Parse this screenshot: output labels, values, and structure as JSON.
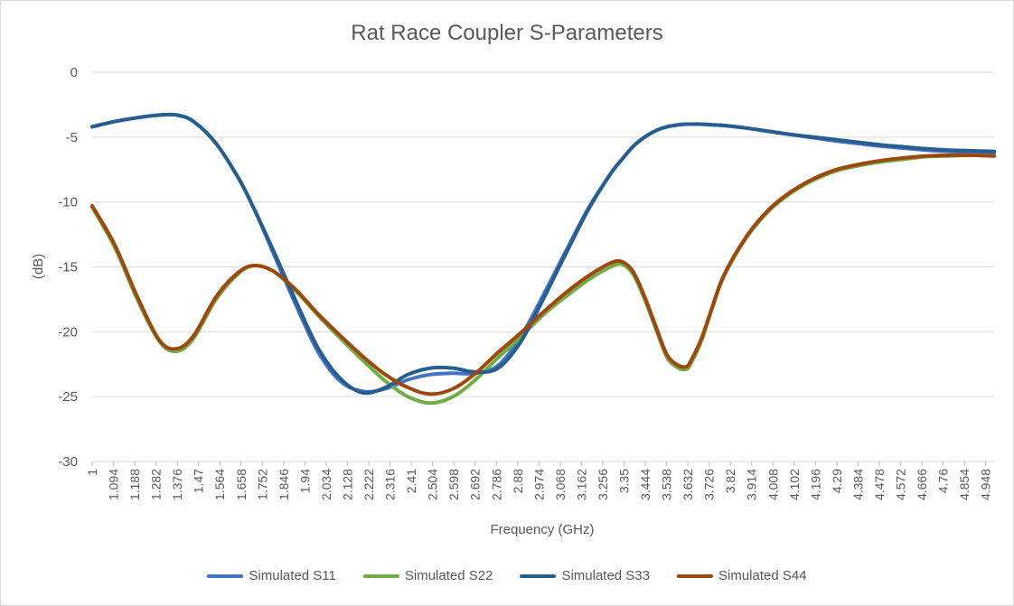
{
  "chart_data": {
    "type": "line",
    "title": "Rat Race Coupler S-Parameters",
    "xlabel": "Frequency (GHz)",
    "ylabel": "(dB)",
    "ylim": [
      -30,
      0
    ],
    "y_ticks": [
      "0",
      "-5",
      "-10",
      "-15",
      "-20",
      "-25",
      "-30"
    ],
    "x_tick_labels": [
      "1",
      "1.094",
      "1.188",
      "1.282",
      "1.376",
      "1.47",
      "1.564",
      "1.658",
      "1.752",
      "1.846",
      "1.94",
      "2.034",
      "2.128",
      "2.222",
      "2.316",
      "2.41",
      "2.504",
      "2.598",
      "2.692",
      "2.786",
      "2.88",
      "2.974",
      "3.068",
      "3.162",
      "3.256",
      "3.35",
      "3.444",
      "3.538",
      "3.632",
      "3.726",
      "3.82",
      "3.914",
      "4.008",
      "4.102",
      "4.196",
      "4.29",
      "4.384",
      "4.478",
      "4.572",
      "4.666",
      "4.76",
      "4.854",
      "4.948"
    ],
    "xlim": [
      1.0,
      5.0
    ],
    "grid": true,
    "legend_position": "bottom",
    "x": [
      1.0,
      1.1,
      1.2,
      1.3,
      1.376,
      1.45,
      1.55,
      1.65,
      1.72,
      1.8,
      1.9,
      2.0,
      2.1,
      2.2,
      2.3,
      2.4,
      2.5,
      2.6,
      2.7,
      2.8,
      2.9,
      3.0,
      3.1,
      3.2,
      3.3,
      3.35,
      3.4,
      3.45,
      3.5,
      3.55,
      3.6,
      3.632,
      3.65,
      3.7,
      3.75,
      3.8,
      3.9,
      4.0,
      4.1,
      4.2,
      4.3,
      4.4,
      4.5,
      4.6,
      4.7,
      4.8,
      4.9,
      5.0
    ],
    "series": [
      {
        "name": "Simulated S11",
        "color": "#4472c4",
        "values": [
          -4.2,
          -3.8,
          -3.5,
          -3.3,
          -3.3,
          -3.8,
          -5.5,
          -8.2,
          -10.6,
          -13.8,
          -17.8,
          -21.5,
          -23.8,
          -24.6,
          -24.4,
          -23.7,
          -23.3,
          -23.2,
          -23.2,
          -22.6,
          -20.4,
          -17.2,
          -13.8,
          -10.5,
          -7.8,
          -6.7,
          -5.7,
          -5.0,
          -4.5,
          -4.2,
          -4.05,
          -4.0,
          -4.0,
          -4.0,
          -4.05,
          -4.1,
          -4.3,
          -4.55,
          -4.8,
          -5.05,
          -5.3,
          -5.5,
          -5.7,
          -5.85,
          -6.0,
          -6.1,
          -6.15,
          -6.2
        ]
      },
      {
        "name": "Simulated S22",
        "color": "#70ad47",
        "values": [
          -10.4,
          -13.5,
          -17.5,
          -20.8,
          -21.5,
          -20.5,
          -17.5,
          -15.5,
          -14.9,
          -15.3,
          -16.8,
          -18.7,
          -20.5,
          -22.2,
          -23.8,
          -25.0,
          -25.5,
          -25.0,
          -23.7,
          -22.0,
          -20.4,
          -18.7,
          -17.3,
          -16.0,
          -15.0,
          -14.8,
          -15.6,
          -17.5,
          -19.8,
          -22.0,
          -22.8,
          -22.9,
          -22.6,
          -20.8,
          -18.2,
          -15.8,
          -12.8,
          -10.7,
          -9.3,
          -8.3,
          -7.6,
          -7.2,
          -6.9,
          -6.7,
          -6.5,
          -6.45,
          -6.4,
          -6.45
        ]
      },
      {
        "name": "Simulated S33",
        "color": "#255e91",
        "values": [
          -4.2,
          -3.8,
          -3.5,
          -3.3,
          -3.3,
          -3.8,
          -5.5,
          -8.2,
          -10.6,
          -13.6,
          -17.5,
          -21.2,
          -23.6,
          -24.7,
          -24.3,
          -23.3,
          -22.8,
          -22.8,
          -23.1,
          -22.8,
          -20.8,
          -17.5,
          -14.0,
          -10.6,
          -7.8,
          -6.7,
          -5.7,
          -5.0,
          -4.5,
          -4.2,
          -4.05,
          -4.0,
          -4.0,
          -4.0,
          -4.05,
          -4.1,
          -4.3,
          -4.55,
          -4.8,
          -5.0,
          -5.2,
          -5.4,
          -5.6,
          -5.75,
          -5.9,
          -6.0,
          -6.05,
          -6.1
        ]
      },
      {
        "name": "Simulated S44",
        "color": "#9e480e",
        "values": [
          -10.3,
          -13.3,
          -17.3,
          -20.7,
          -21.3,
          -20.3,
          -17.3,
          -15.4,
          -14.9,
          -15.3,
          -16.7,
          -18.6,
          -20.3,
          -21.9,
          -23.3,
          -24.3,
          -24.8,
          -24.4,
          -23.2,
          -21.6,
          -20.1,
          -18.5,
          -17.0,
          -15.7,
          -14.7,
          -14.6,
          -15.4,
          -17.3,
          -19.6,
          -21.8,
          -22.6,
          -22.7,
          -22.4,
          -20.6,
          -18.1,
          -15.7,
          -12.7,
          -10.6,
          -9.2,
          -8.2,
          -7.5,
          -7.1,
          -6.8,
          -6.6,
          -6.45,
          -6.4,
          -6.4,
          -6.45
        ]
      }
    ]
  }
}
